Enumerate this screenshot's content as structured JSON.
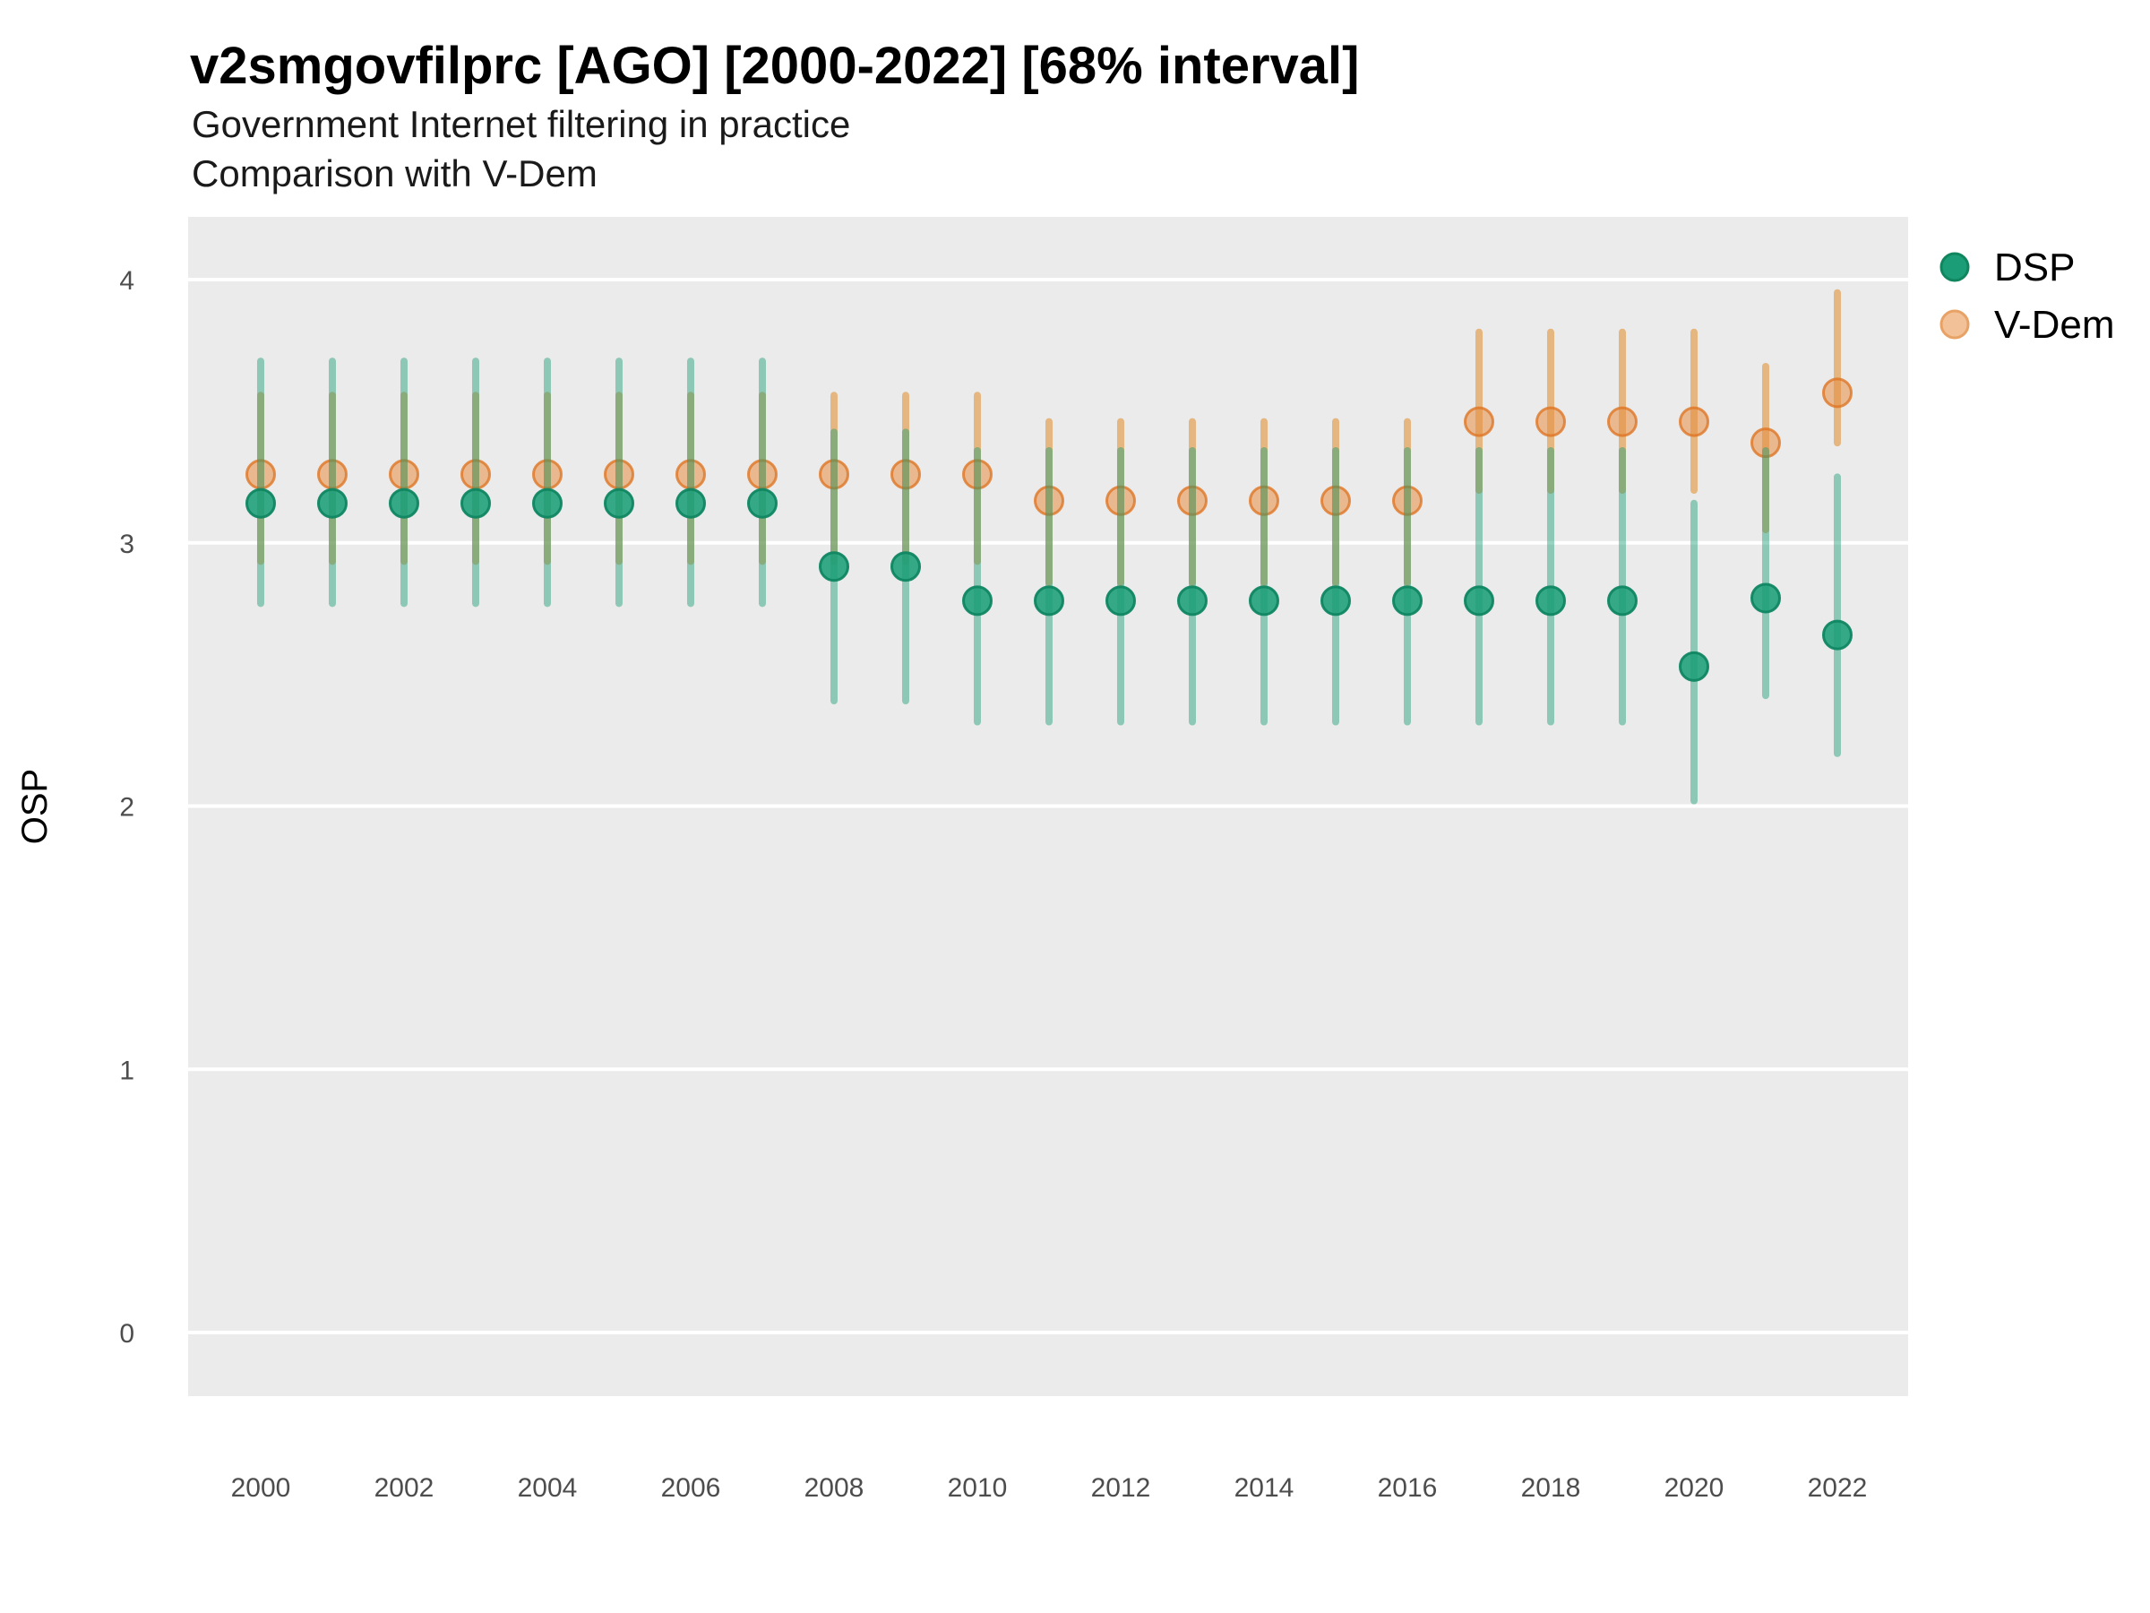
{
  "chart_data": {
    "type": "scatter",
    "variant": "point-interval (pointrange, 68% credible interval)",
    "title": "v2smgovfilprc [AGO] [2000-2022] [68% interval]",
    "subtitle": "Government Internet filtering in practice",
    "subtitle2": "Comparison with V-Dem",
    "ylabel": "OSP",
    "xlabel": "",
    "ylim": [
      -0.25,
      4.25
    ],
    "yticks": [
      0,
      1,
      2,
      3,
      4
    ],
    "xticks": [
      2000,
      2002,
      2004,
      2006,
      2008,
      2010,
      2012,
      2014,
      2016,
      2018,
      2020,
      2022
    ],
    "grid": "horizontal-major-only",
    "panel_background": "#ebebeb",
    "gridline_color": "#ffffff",
    "legend_position": "right-top",
    "x": [
      2000,
      2001,
      2002,
      2003,
      2004,
      2005,
      2006,
      2007,
      2008,
      2009,
      2010,
      2011,
      2012,
      2013,
      2014,
      2015,
      2016,
      2017,
      2018,
      2019,
      2020,
      2021,
      2022
    ],
    "series": [
      {
        "name": "DSP",
        "point_color": "rgba(27,158,119,0.88)",
        "point_stroke": "rgba(16,134,98,0.95)",
        "bar_color": "rgba(27,158,119,0.45)",
        "legend_fill": "#1b9e77",
        "legend_stroke": "#10865f",
        "est": [
          3.15,
          3.15,
          3.15,
          3.15,
          3.15,
          3.15,
          3.15,
          3.15,
          2.91,
          2.91,
          2.78,
          2.78,
          2.78,
          2.78,
          2.78,
          2.78,
          2.78,
          2.78,
          2.78,
          2.78,
          2.53,
          2.79,
          2.65
        ],
        "lower": [
          2.77,
          2.77,
          2.77,
          2.77,
          2.77,
          2.77,
          2.77,
          2.77,
          2.4,
          2.4,
          2.32,
          2.32,
          2.32,
          2.32,
          2.32,
          2.32,
          2.32,
          2.32,
          2.32,
          2.32,
          2.02,
          2.42,
          2.2
        ],
        "upper": [
          3.69,
          3.69,
          3.69,
          3.69,
          3.69,
          3.69,
          3.69,
          3.69,
          3.42,
          3.42,
          3.35,
          3.35,
          3.35,
          3.35,
          3.35,
          3.35,
          3.35,
          3.35,
          3.35,
          3.35,
          3.15,
          3.35,
          3.25
        ]
      },
      {
        "name": "V-Dem",
        "point_color": "rgba(231,142,68,0.55)",
        "point_stroke": "rgba(222,117,36,0.8)",
        "bar_color": "rgba(224,130,20,0.5)",
        "legend_fill": "#f2c198",
        "legend_stroke": "#e8a265",
        "est": [
          3.26,
          3.26,
          3.26,
          3.26,
          3.26,
          3.26,
          3.26,
          3.26,
          3.26,
          3.26,
          3.26,
          3.16,
          3.16,
          3.16,
          3.16,
          3.16,
          3.16,
          3.46,
          3.46,
          3.46,
          3.46,
          3.38,
          3.57
        ],
        "lower": [
          2.93,
          2.93,
          2.93,
          2.93,
          2.93,
          2.93,
          2.93,
          2.93,
          2.93,
          2.93,
          2.93,
          2.85,
          2.85,
          2.85,
          2.85,
          2.85,
          2.85,
          3.2,
          3.2,
          3.2,
          3.2,
          3.05,
          3.38
        ],
        "upper": [
          3.56,
          3.56,
          3.56,
          3.56,
          3.56,
          3.56,
          3.56,
          3.56,
          3.56,
          3.56,
          3.56,
          3.46,
          3.46,
          3.46,
          3.46,
          3.46,
          3.46,
          3.8,
          3.8,
          3.8,
          3.8,
          3.67,
          3.95
        ]
      }
    ]
  }
}
